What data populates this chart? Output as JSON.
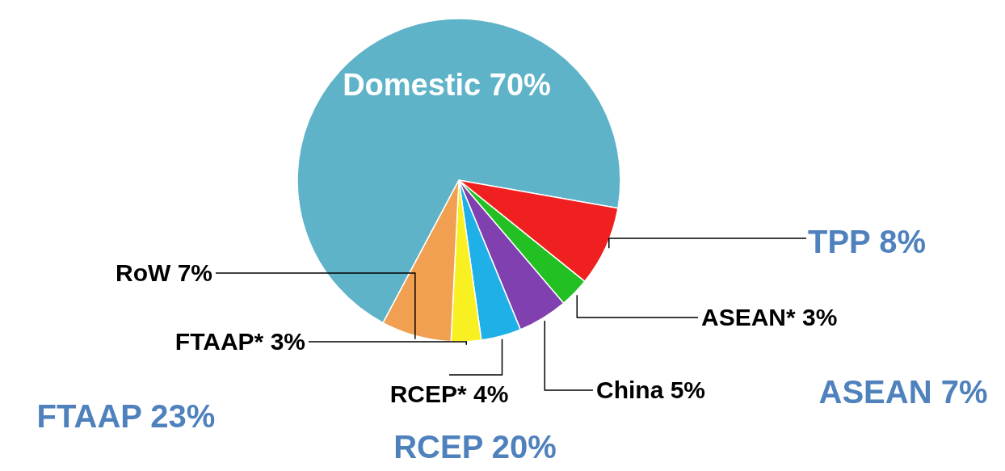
{
  "chart_data": {
    "type": "pie",
    "categories": [
      "Domestic",
      "TPP",
      "ASEAN*",
      "China",
      "RCEP*",
      "FTAAP*",
      "RoW"
    ],
    "values": [
      70,
      8,
      3,
      5,
      4,
      3,
      7
    ],
    "value_labels": [
      "70%",
      "8%",
      "3%",
      "5%",
      "4%",
      "3%",
      "7%"
    ],
    "colors": [
      "#5fb3c8",
      "#f02020",
      "#22c022",
      "#8040b0",
      "#20b0e8",
      "#f8f020",
      "#f0a050"
    ],
    "annotations": [
      "ASEAN 7%",
      "RCEP 20%",
      "FTAAP 23%"
    ],
    "legend": false
  }
}
